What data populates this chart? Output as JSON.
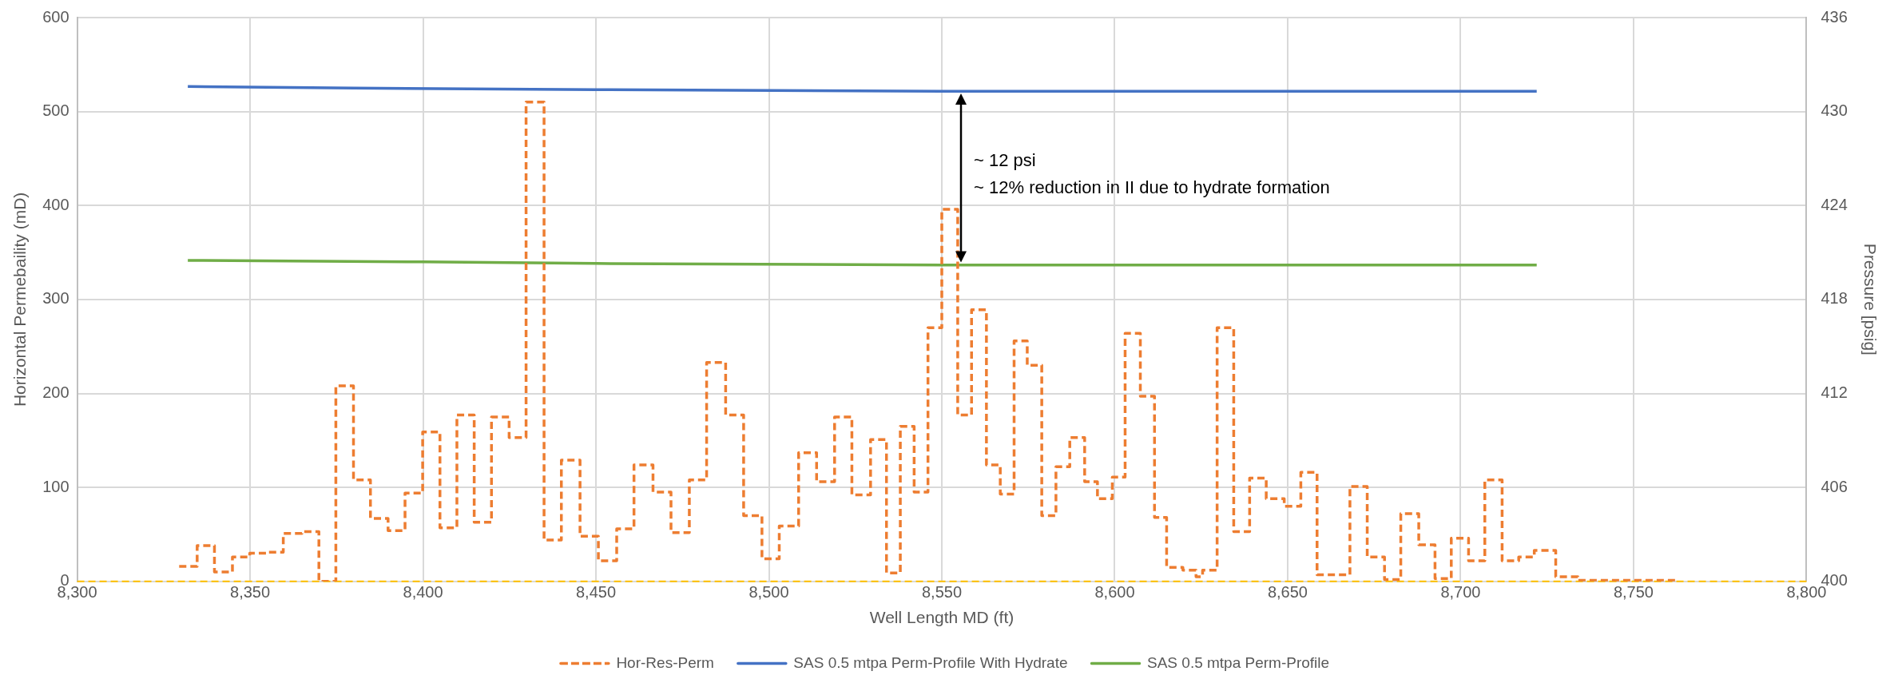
{
  "chart_data": {
    "type": "line",
    "xlabel": "Well Length MD (ft)",
    "ylabel": "Horizontal Permebaility (mD)",
    "y2label": "Pressure [psig]",
    "xlim": [
      8300,
      8800
    ],
    "xticks": [
      {
        "value": 8300,
        "label": "8,300"
      },
      {
        "value": 8350,
        "label": "8,350"
      },
      {
        "value": 8400,
        "label": "8,400"
      },
      {
        "value": 8450,
        "label": "8,450"
      },
      {
        "value": 8500,
        "label": "8,500"
      },
      {
        "value": 8550,
        "label": "8,550"
      },
      {
        "value": 8600,
        "label": "8,600"
      },
      {
        "value": 8650,
        "label": "8,650"
      },
      {
        "value": 8700,
        "label": "8,700"
      },
      {
        "value": 8750,
        "label": "8,750"
      },
      {
        "value": 8800,
        "label": "8,800"
      }
    ],
    "ylim": [
      0,
      600
    ],
    "yticks": [
      0,
      100,
      200,
      300,
      400,
      500,
      600
    ],
    "y2lim": [
      400,
      436
    ],
    "y2ticks": [
      400,
      406,
      412,
      418,
      424,
      430,
      436
    ],
    "grid": true,
    "legend": "bottom",
    "marker": "none",
    "series": [
      {
        "name": "Hor-Res-Perm",
        "type": "step",
        "color": "#ed7d31",
        "line_style": "dashed",
        "x": [
          8329.5,
          8334.7,
          8339.7,
          8344.9,
          8349.9,
          8355,
          8359.6,
          8365,
          8369.9,
          8374.8,
          8379.9,
          8384.8,
          8389.9,
          8394.8,
          8399.9,
          8404.9,
          8409.8,
          8414.8,
          8419.8,
          8424.9,
          8429.8,
          8435,
          8440,
          8445.4,
          8450.7,
          8456,
          8461,
          8466.5,
          8471.7,
          8477,
          8482,
          8487.5,
          8492.7,
          8498,
          8503,
          8508.6,
          8513.8,
          8519,
          8524,
          8529.4,
          8534,
          8538,
          8542,
          8546,
          8550,
          8554.6,
          8558.6,
          8562.9,
          8566.9,
          8570.9,
          8574.7,
          8578.9,
          8583,
          8587,
          8591.3,
          8595,
          8599.3,
          8603,
          8607.4,
          8611.5,
          8615,
          8619.7,
          8623.5,
          8625.4,
          8629.6,
          8634.4,
          8639,
          8643.8,
          8649,
          8653.8,
          8658.5,
          8668,
          8673,
          8678,
          8682.7,
          8687.9,
          8692.6,
          8697.3,
          8702.3,
          8707,
          8712,
          8716.8,
          8721.3,
          8727.5,
          8733.9,
          8762.3
        ],
        "values": [
          16,
          38,
          10,
          26,
          30,
          31,
          51,
          53,
          0,
          208,
          108,
          67,
          54,
          94,
          159,
          57,
          177,
          63,
          175,
          153,
          510,
          44,
          129,
          48,
          22,
          56,
          124,
          95,
          52,
          108,
          233,
          177,
          70,
          24,
          59,
          137,
          106,
          175,
          92,
          151,
          9,
          165,
          95,
          270,
          396,
          177,
          289,
          124,
          93,
          256,
          230,
          70,
          122,
          153,
          106,
          88,
          111,
          264,
          197,
          68,
          15,
          12,
          5,
          12,
          270,
          53,
          110,
          88,
          80,
          116,
          7,
          101,
          26,
          2,
          72,
          39,
          3,
          46,
          22,
          108,
          22,
          26,
          33,
          5,
          1,
          1
        ]
      },
      {
        "name": "SAS 0.5 mtpa Perm-Profile With Hydrate",
        "type": "line",
        "axis": "y2",
        "color": "#4472c4",
        "line_style": "solid",
        "x": [
          8332,
          8380,
          8450,
          8550,
          8722
        ],
        "values": [
          431.6,
          431.5,
          431.4,
          431.3,
          431.3
        ]
      },
      {
        "name": "SAS 0.5 mtpa Perm-Profile",
        "type": "line",
        "axis": "y2",
        "color": "#70ad47",
        "line_style": "solid",
        "x": [
          8332,
          8400,
          8450,
          8550,
          8722
        ],
        "values": [
          420.5,
          420.4,
          420.3,
          420.2,
          420.2
        ]
      }
    ],
    "ref_lines": [
      {
        "axis": "y",
        "value": 0,
        "color": "#ffc000",
        "line_style": "dashed"
      }
    ],
    "annotations": [
      "~ 12 psi",
      "~ 12% reduction in II due to hydrate formation"
    ]
  }
}
